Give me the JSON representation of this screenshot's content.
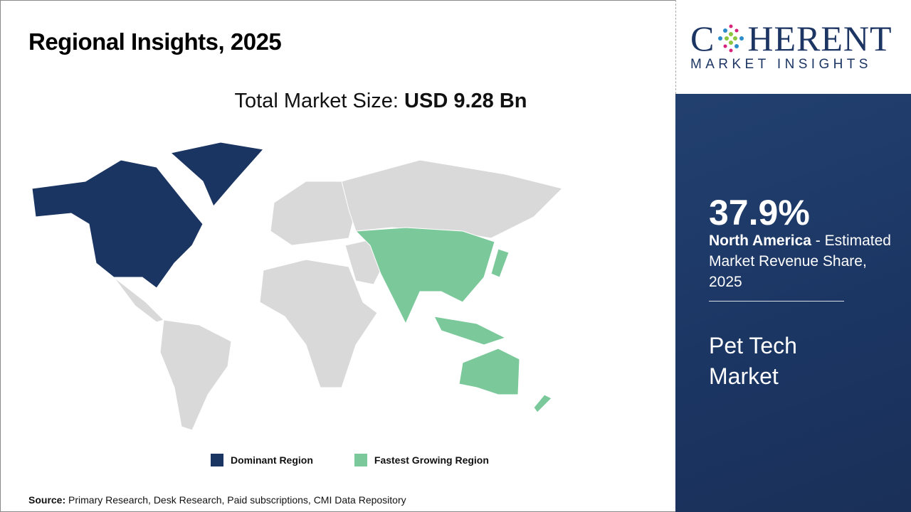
{
  "header": {
    "title": "Regional Insights, 2025"
  },
  "market_size": {
    "label": "Total Market Size: ",
    "value": "USD 9.28 Bn"
  },
  "legend": [
    {
      "label": "Dominant Region",
      "color": "#1b3563"
    },
    {
      "label": "Fastest Growing Region",
      "color": "#7bc99a"
    }
  ],
  "map": {
    "dominant": "North America",
    "fastest_growing": "Asia Pacific",
    "other_color": "#d9d9d9"
  },
  "source": {
    "label": "Source:",
    "text": " Primary Research, Desk Research, Paid subscriptions, CMI Data Repository"
  },
  "logo": {
    "line1_a": "C",
    "line1_b": "HERENT",
    "line2": "MARKET INSIGHTS"
  },
  "panel": {
    "percent": "37.9%",
    "region": "North America",
    "desc": " - Estimated Market Revenue Share, 2025",
    "market": "Pet Tech Market"
  }
}
